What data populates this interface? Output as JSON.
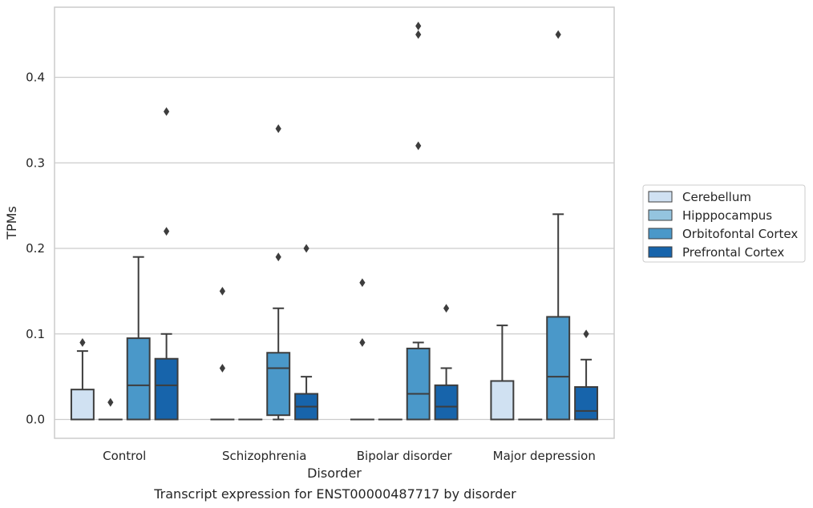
{
  "chart_data": {
    "type": "box",
    "title": "Transcript expression for ENST00000487717 by disorder",
    "xlabel": "Disorder",
    "ylabel": "TPMs",
    "ylim": [
      -0.022,
      0.482
    ],
    "yticks": [
      "0.0",
      "0.1",
      "0.2",
      "0.3",
      "0.4"
    ],
    "categories": [
      "Control",
      "Schizophrenia",
      "Bipolar disorder",
      "Major depression"
    ],
    "grid": true,
    "legend_position": "right",
    "series": [
      {
        "name": "Cerebellum",
        "color": "#d0e1f2",
        "boxes": [
          {
            "q1": 0.0,
            "median": 0.0,
            "q3": 0.035,
            "wlow": 0.0,
            "whigh": 0.08,
            "outliers": [
              0.09
            ]
          },
          {
            "q1": 0.0,
            "median": 0.0,
            "q3": 0.0,
            "wlow": 0.0,
            "whigh": 0.0,
            "outliers": [
              0.06,
              0.15
            ]
          },
          {
            "q1": 0.0,
            "median": 0.0,
            "q3": 0.0,
            "wlow": 0.0,
            "whigh": 0.0,
            "outliers": [
              0.09,
              0.16
            ]
          },
          {
            "q1": 0.0,
            "median": 0.0,
            "q3": 0.045,
            "wlow": 0.0,
            "whigh": 0.11,
            "outliers": []
          }
        ]
      },
      {
        "name": "Hipppocampus",
        "color": "#94c4df",
        "boxes": [
          {
            "q1": 0.0,
            "median": 0.0,
            "q3": 0.0,
            "wlow": 0.0,
            "whigh": 0.0,
            "outliers": [
              0.02
            ]
          },
          {
            "q1": 0.0,
            "median": 0.0,
            "q3": 0.0,
            "wlow": 0.0,
            "whigh": 0.0,
            "outliers": []
          },
          {
            "q1": 0.0,
            "median": 0.0,
            "q3": 0.0,
            "wlow": 0.0,
            "whigh": 0.0,
            "outliers": []
          },
          {
            "q1": 0.0,
            "median": 0.0,
            "q3": 0.0,
            "wlow": 0.0,
            "whigh": 0.0,
            "outliers": []
          }
        ]
      },
      {
        "name": "Orbitofontal Cortex",
        "color": "#4a98c9",
        "boxes": [
          {
            "q1": 0.0,
            "median": 0.04,
            "q3": 0.095,
            "wlow": 0.0,
            "whigh": 0.19,
            "outliers": []
          },
          {
            "q1": 0.005,
            "median": 0.06,
            "q3": 0.078,
            "wlow": 0.0,
            "whigh": 0.13,
            "outliers": [
              0.19,
              0.34
            ]
          },
          {
            "q1": 0.0,
            "median": 0.03,
            "q3": 0.083,
            "wlow": 0.0,
            "whigh": 0.09,
            "outliers": [
              0.32,
              0.45,
              0.46
            ]
          },
          {
            "q1": 0.0,
            "median": 0.05,
            "q3": 0.12,
            "wlow": 0.0,
            "whigh": 0.24,
            "outliers": [
              0.45
            ]
          }
        ]
      },
      {
        "name": "Prefrontal Cortex",
        "color": "#1764ab",
        "boxes": [
          {
            "q1": 0.0,
            "median": 0.04,
            "q3": 0.071,
            "wlow": 0.0,
            "whigh": 0.1,
            "outliers": [
              0.22,
              0.36
            ]
          },
          {
            "q1": 0.0,
            "median": 0.015,
            "q3": 0.03,
            "wlow": 0.0,
            "whigh": 0.05,
            "outliers": [
              0.2
            ]
          },
          {
            "q1": 0.0,
            "median": 0.015,
            "q3": 0.04,
            "wlow": 0.0,
            "whigh": 0.06,
            "outliers": [
              0.13
            ]
          },
          {
            "q1": 0.0,
            "median": 0.01,
            "q3": 0.038,
            "wlow": 0.0,
            "whigh": 0.07,
            "outliers": [
              0.1
            ]
          }
        ]
      }
    ]
  }
}
